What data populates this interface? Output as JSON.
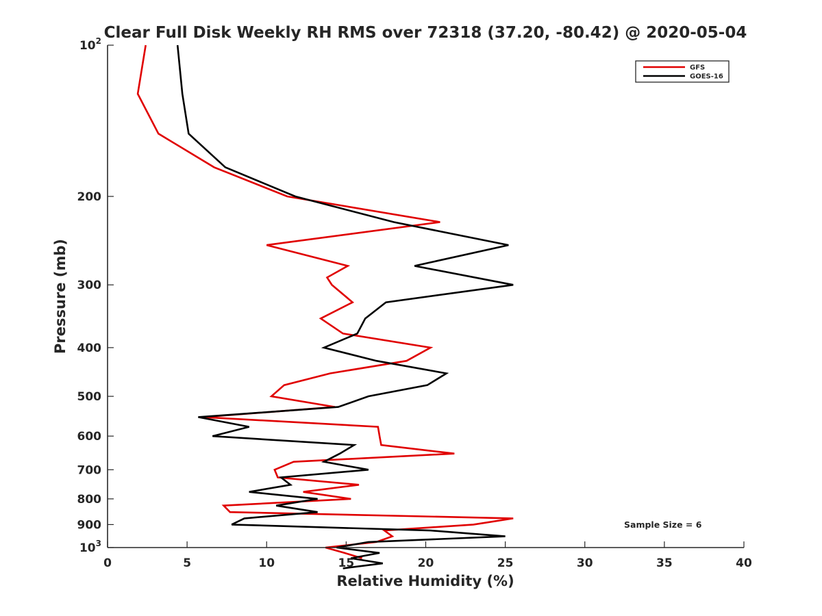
{
  "chart_data": {
    "type": "line",
    "title": "Clear Full Disk Weekly RH RMS over 72318 (37.20, -80.42) @ 2020-05-04",
    "xlabel": "Relative Humidity (%)",
    "ylabel": "Pressure (mb)",
    "xlim": [
      0,
      40
    ],
    "ylim": [
      100,
      1000
    ],
    "yscale": "log",
    "y_reversed": true,
    "grid": false,
    "legend_position": "top-right",
    "x_ticks": [
      0,
      5,
      10,
      15,
      20,
      25,
      30,
      35,
      40
    ],
    "x_tick_labels": [
      "0",
      "5",
      "10",
      "15",
      "20",
      "25",
      "30",
      "35",
      "40"
    ],
    "y_ticks": [
      100,
      200,
      300,
      400,
      500,
      600,
      700,
      800,
      900,
      1000
    ],
    "y_tick_labels": [
      {
        "base": "10",
        "exp": "2"
      },
      {
        "base": "200",
        "exp": ""
      },
      {
        "base": "300",
        "exp": ""
      },
      {
        "base": "400",
        "exp": ""
      },
      {
        "base": "500",
        "exp": ""
      },
      {
        "base": "600",
        "exp": ""
      },
      {
        "base": "700",
        "exp": ""
      },
      {
        "base": "800",
        "exp": ""
      },
      {
        "base": "900",
        "exp": ""
      },
      {
        "base": "10",
        "exp": "3"
      }
    ],
    "annotation": "Sample Size = 6",
    "series": [
      {
        "name": "GFS",
        "color": "#e00000",
        "points": [
          [
            2.4,
            100
          ],
          [
            1.9,
            125
          ],
          [
            3.2,
            150
          ],
          [
            6.7,
            175
          ],
          [
            11.3,
            200
          ],
          [
            20.9,
            225
          ],
          [
            10.0,
            250
          ],
          [
            15.1,
            275
          ],
          [
            13.8,
            290
          ],
          [
            14.1,
            300
          ],
          [
            15.4,
            325
          ],
          [
            13.4,
            350
          ],
          [
            14.8,
            375
          ],
          [
            20.3,
            400
          ],
          [
            18.8,
            425
          ],
          [
            14.0,
            450
          ],
          [
            11.1,
            475
          ],
          [
            10.3,
            500
          ],
          [
            14.3,
            525
          ],
          [
            6.0,
            550
          ],
          [
            17.0,
            575
          ],
          [
            17.1,
            600
          ],
          [
            17.2,
            625
          ],
          [
            21.8,
            650
          ],
          [
            11.7,
            675
          ],
          [
            10.5,
            700
          ],
          [
            10.7,
            725
          ],
          [
            15.8,
            750
          ],
          [
            12.3,
            775
          ],
          [
            15.3,
            800
          ],
          [
            7.3,
            825
          ],
          [
            7.7,
            850
          ],
          [
            25.5,
            875
          ],
          [
            23.0,
            900
          ],
          [
            17.4,
            925
          ],
          [
            17.9,
            950
          ],
          [
            16.9,
            975
          ],
          [
            13.7,
            1000
          ],
          [
            14.9,
            1025
          ],
          [
            16.0,
            1050
          ]
        ]
      },
      {
        "name": "GOES-16",
        "color": "#000000",
        "points": [
          [
            4.4,
            100
          ],
          [
            4.7,
            125
          ],
          [
            5.1,
            150
          ],
          [
            7.4,
            175
          ],
          [
            11.8,
            200
          ],
          [
            18.0,
            225
          ],
          [
            25.2,
            250
          ],
          [
            19.3,
            275
          ],
          [
            25.5,
            300
          ],
          [
            17.5,
            325
          ],
          [
            16.2,
            350
          ],
          [
            15.7,
            375
          ],
          [
            13.6,
            400
          ],
          [
            16.9,
            425
          ],
          [
            21.3,
            450
          ],
          [
            20.1,
            475
          ],
          [
            16.4,
            500
          ],
          [
            14.5,
            525
          ],
          [
            5.7,
            550
          ],
          [
            8.9,
            575
          ],
          [
            6.6,
            600
          ],
          [
            15.5,
            625
          ],
          [
            14.6,
            650
          ],
          [
            13.6,
            675
          ],
          [
            16.4,
            700
          ],
          [
            10.9,
            725
          ],
          [
            11.5,
            750
          ],
          [
            8.9,
            775
          ],
          [
            13.2,
            800
          ],
          [
            10.6,
            825
          ],
          [
            13.2,
            850
          ],
          [
            8.6,
            875
          ],
          [
            7.8,
            900
          ],
          [
            20.3,
            925
          ],
          [
            25.0,
            950
          ],
          [
            16.4,
            975
          ],
          [
            14.4,
            1000
          ],
          [
            17.1,
            1025
          ],
          [
            15.3,
            1050
          ],
          [
            17.3,
            1075
          ],
          [
            14.8,
            1100
          ]
        ]
      }
    ]
  }
}
